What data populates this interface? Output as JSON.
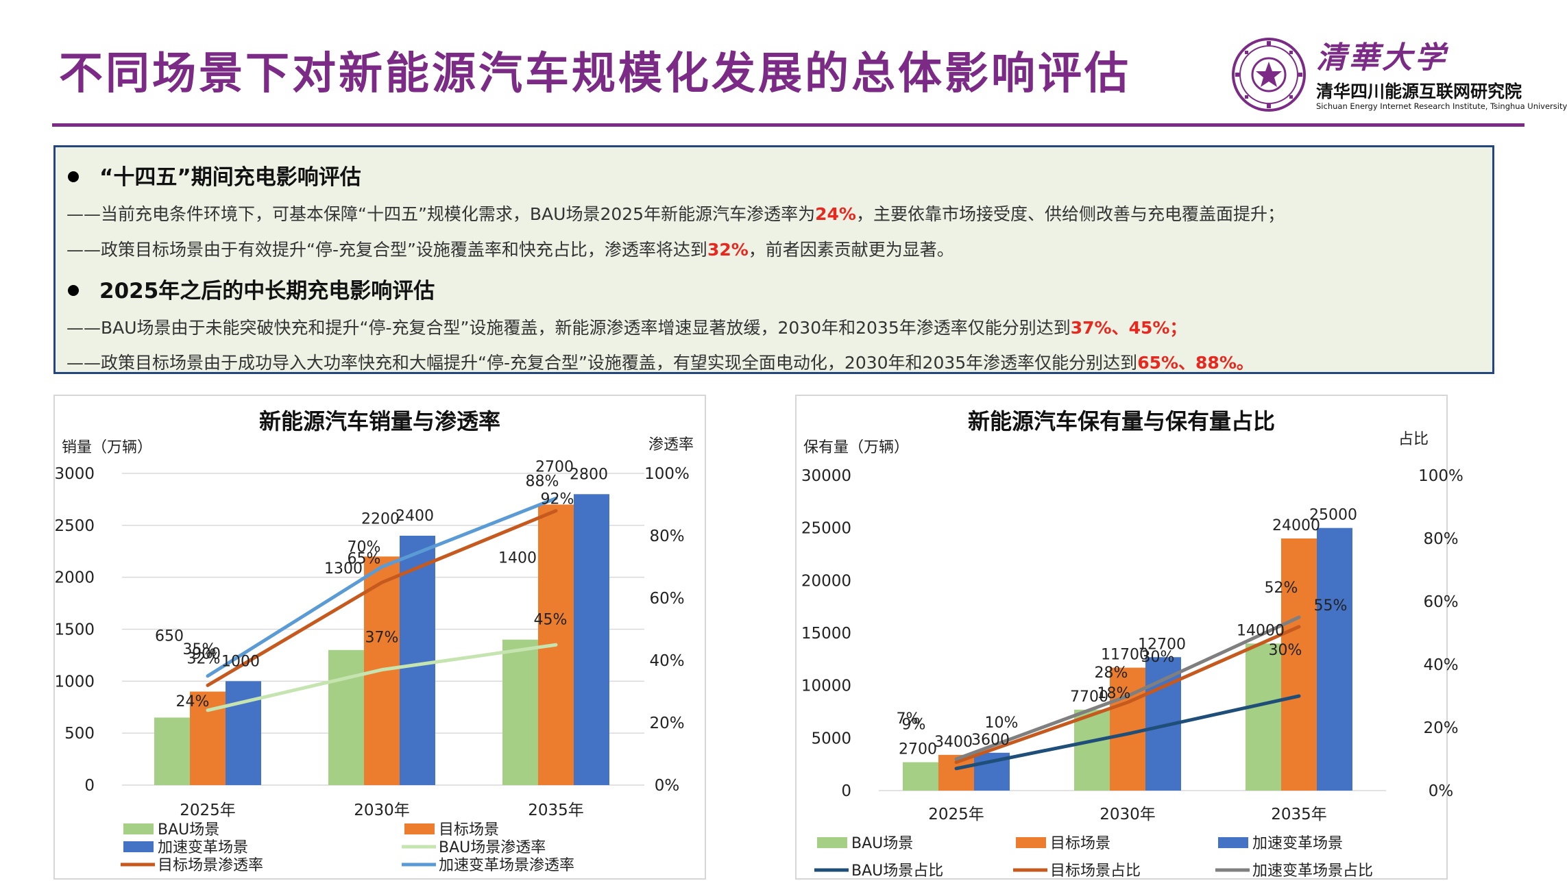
{
  "header": {
    "title": "不同场景下对新能源汽车规模化发展的总体影响评估",
    "logo_cn": "清華大学",
    "logo_institute": "清华四川能源互联网研究院",
    "logo_en": "Sichuan Energy Internet Research Institute, Tsinghua University"
  },
  "summary": {
    "sec1_title": "“十四五”期间充电影响评估",
    "sec1_line1_a": "——当前充电条件环境下，可基本保障“十四五”规模化需求，BAU场景2025年新能源汽车渗透率为",
    "sec1_line1_hl": "24%",
    "sec1_line1_b": "，主要依靠市场接受度、供给侧改善与充电覆盖面提升；",
    "sec1_line2_a": "——政策目标场景由于有效提升“停-充复合型”设施覆盖率和快充占比，渗透率将达到",
    "sec1_line2_hl": "32%",
    "sec1_line2_b": "，前者因素贡献更为显著。",
    "sec2_title": "2025年之后的中长期充电影响评估",
    "sec2_line1_a": "——BAU场景由于未能突破快充和提升“停-充复合型”设施覆盖，新能源渗透率增速显著放缓，2030年和2035年渗透率仅能分别达到",
    "sec2_line1_hl": "37%、45%；",
    "sec2_line2_a": "——政策目标场景由于成功导入大功率快充和大幅提升“停-充复合型”设施覆盖，有望实现全面电动化，2030年和2035年渗透率仅能分别达到",
    "sec2_line2_hl": "65%、88%。"
  },
  "colors": {
    "bau": "#a5cf84",
    "target": "#ec7d2f",
    "accel": "#4472c4",
    "bau_rate_left": "#c5e4af",
    "target_rate": "#c65a1e",
    "accel_rate_left": "#5b9bd5",
    "bau_share_right": "#1f4e79",
    "accel_share_right": "#7f7f7f"
  },
  "chart_data": [
    {
      "type": "bar",
      "title": "新能源汽车销量与渗透率",
      "ylabel": "销量（万辆）",
      "y2label": "渗透率",
      "categories": [
        "2025年",
        "2030年",
        "2035年"
      ],
      "ylim": [
        0,
        3000
      ],
      "yticks": [
        "3000",
        "2500",
        "2000",
        "1500",
        "1000",
        "500",
        "0"
      ],
      "y2lim": [
        0,
        100
      ],
      "y2ticks": [
        "100%",
        "80%",
        "60%",
        "40%",
        "20%",
        "0%"
      ],
      "grid": true,
      "legend_position": "bottom",
      "series": [
        {
          "name": "BAU场景",
          "kind": "bar",
          "values": [
            650,
            1300,
            1400
          ],
          "labels": [
            "650",
            "1300",
            "1400"
          ]
        },
        {
          "name": "目标场景",
          "kind": "bar",
          "values": [
            900,
            2200,
            2700
          ],
          "labels": [
            "900",
            "2200",
            "2700"
          ]
        },
        {
          "name": "加速变革场景",
          "kind": "bar",
          "values": [
            1000,
            2400,
            2800
          ],
          "labels": [
            "1000",
            "2400",
            "2800"
          ]
        },
        {
          "name": "BAU场景渗透率",
          "kind": "line",
          "axis": "right",
          "values": [
            24,
            37,
            45
          ],
          "labels": [
            "24%",
            "37%",
            "45%"
          ]
        },
        {
          "name": "目标场景渗透率",
          "kind": "line",
          "axis": "right",
          "values": [
            32,
            65,
            88
          ],
          "labels": [
            "32%",
            "65%",
            "88%"
          ]
        },
        {
          "name": "加速变革场景渗透率",
          "kind": "line",
          "axis": "right",
          "values": [
            35,
            70,
            92
          ],
          "labels": [
            "35%",
            "70%",
            "92%"
          ]
        }
      ]
    },
    {
      "type": "bar",
      "title": "新能源汽车保有量与保有量占比",
      "ylabel": "保有量（万辆）",
      "y2label": "占比",
      "categories": [
        "2025年",
        "2030年",
        "2035年"
      ],
      "ylim": [
        0,
        30000
      ],
      "yticks": [
        "30000",
        "25000",
        "20000",
        "15000",
        "10000",
        "5000",
        "0"
      ],
      "y2lim": [
        0,
        100
      ],
      "y2ticks": [
        "100%",
        "80%",
        "60%",
        "40%",
        "20%",
        "0%"
      ],
      "grid": false,
      "legend_position": "bottom",
      "series": [
        {
          "name": "BAU场景",
          "kind": "bar",
          "values": [
            2700,
            7700,
            14000
          ],
          "labels": [
            "2700",
            "7700",
            "14000"
          ]
        },
        {
          "name": "目标场景",
          "kind": "bar",
          "values": [
            3400,
            11700,
            24000
          ],
          "labels": [
            "3400",
            "11700",
            "24000"
          ]
        },
        {
          "name": "加速变革场景",
          "kind": "bar",
          "values": [
            3600,
            12700,
            25000
          ],
          "labels": [
            "3600",
            "12700",
            "25000"
          ]
        },
        {
          "name": "BAU场景占比",
          "kind": "line",
          "axis": "right",
          "values": [
            7,
            18,
            30
          ],
          "labels": [
            "7%",
            "18%",
            "30%"
          ]
        },
        {
          "name": "目标场景占比",
          "kind": "line",
          "axis": "right",
          "values": [
            9,
            28,
            52
          ],
          "labels": [
            "9%",
            "28%",
            "52%"
          ]
        },
        {
          "name": "加速变革场景占比",
          "kind": "line",
          "axis": "right",
          "values": [
            10,
            30,
            55
          ],
          "labels": [
            "10%",
            "30%",
            "55%"
          ]
        }
      ]
    }
  ]
}
